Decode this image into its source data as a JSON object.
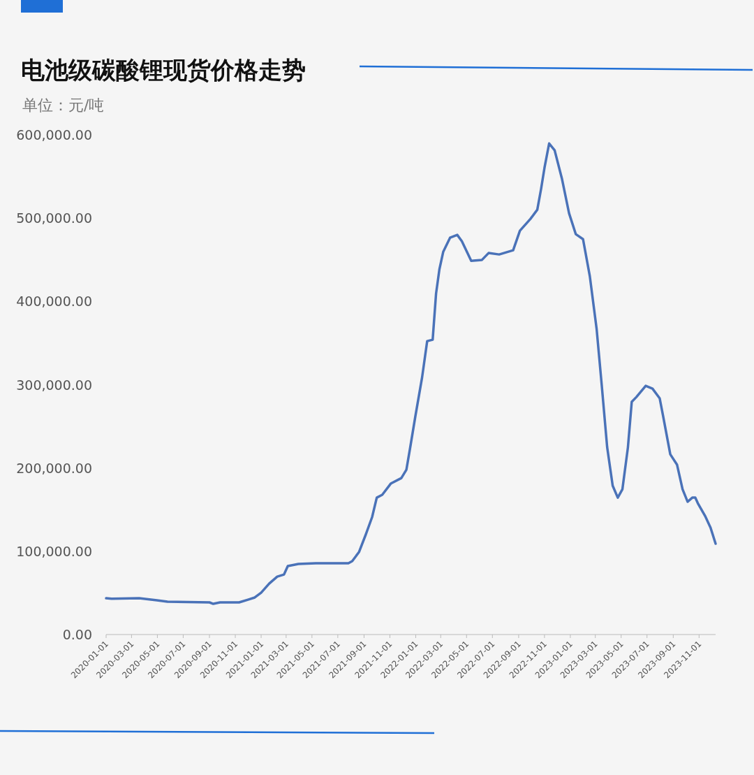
{
  "chart_data": {
    "type": "line",
    "title": "电池级碳酸锂现货价格走势",
    "subtitle": "单位：元/吨",
    "x": [
      "2020-01-01",
      "2020-01-14",
      "2020-03-19",
      "2020-04-30",
      "2020-05-25",
      "2020-09-01",
      "2020-09-10",
      "2020-09-26",
      "2020-11-10",
      "2020-12-01",
      "2020-12-17",
      "2021-01-01",
      "2021-01-20",
      "2021-02-08",
      "2021-02-24",
      "2021-03-05",
      "2021-03-30",
      "2021-05-10",
      "2021-07-26",
      "2021-08-04",
      "2021-08-20",
      "2021-09-05",
      "2021-09-20",
      "2021-10-01",
      "2021-10-14",
      "2021-11-03",
      "2021-11-28",
      "2021-12-10",
      "2021-12-19",
      "2021-12-31",
      "2022-01-16",
      "2022-01-28",
      "2022-02-10",
      "2022-02-18",
      "2022-02-26",
      "2022-03-07",
      "2022-03-23",
      "2022-04-09",
      "2022-04-20",
      "2022-05-12",
      "2022-06-06",
      "2022-06-22",
      "2022-07-17",
      "2022-08-19",
      "2022-09-04",
      "2022-09-29",
      "2022-10-15",
      "2022-10-24",
      "2022-11-01",
      "2022-11-12",
      "2022-11-25",
      "2022-12-12",
      "2022-12-29",
      "2023-01-14",
      "2023-01-31",
      "2023-02-16",
      "2023-03-04",
      "2023-03-16",
      "2023-03-29",
      "2023-04-11",
      "2023-04-23",
      "2023-05-04",
      "2023-05-17",
      "2023-05-26",
      "2023-06-06",
      "2023-06-28",
      "2023-07-14",
      "2023-07-31",
      "2023-08-08",
      "2023-08-25",
      "2023-09-10",
      "2023-09-23",
      "2023-10-05",
      "2023-10-16",
      "2023-10-23",
      "2023-10-29",
      "2023-11-15",
      "2023-11-28",
      "2023-12-10"
    ],
    "series": [
      {
        "color": "#4a72b8",
        "values": [
          43600,
          43000,
          43600,
          41100,
          39400,
          38600,
          36900,
          38600,
          38600,
          41900,
          44500,
          50300,
          61200,
          69600,
          72100,
          82200,
          84700,
          85600,
          85600,
          88100,
          99000,
          120000,
          141000,
          164400,
          167800,
          181200,
          187900,
          198000,
          224800,
          261700,
          308700,
          352300,
          354000,
          409400,
          438800,
          459700,
          476500,
          479900,
          472300,
          448800,
          449700,
          458100,
          456400,
          461400,
          484900,
          499200,
          510100,
          535200,
          560400,
          589700,
          581400,
          547800,
          505900,
          480700,
          474800,
          430400,
          367400,
          300300,
          224800,
          178700,
          164400,
          174500,
          224800,
          279400,
          285200,
          298700,
          295300,
          283600,
          262600,
          216400,
          203900,
          174500,
          159400,
          164400,
          164400,
          157700,
          142600,
          128400,
          109100
        ]
      }
    ],
    "xlim": [
      "2020-01-01",
      "2023-12-10"
    ],
    "xticks": [
      "2020-01-01",
      "2020-03-01",
      "2020-05-01",
      "2020-07-01",
      "2020-09-01",
      "2020-11-01",
      "2021-01-01",
      "2021-03-01",
      "2021-05-01",
      "2021-07-01",
      "2021-09-01",
      "2021-11-01",
      "2022-01-01",
      "2022-03-01",
      "2022-05-01",
      "2022-07-01",
      "2022-09-01",
      "2022-11-01",
      "2023-01-01",
      "2023-03-01",
      "2023-05-01",
      "2023-07-01",
      "2023-09-01",
      "2023-11-01"
    ],
    "ylim": [
      0,
      600000
    ],
    "yticks": [
      {
        "value": 0,
        "label": "0.00"
      },
      {
        "value": 100000,
        "label": "100,000.00"
      },
      {
        "value": 200000,
        "label": "200,000.00"
      },
      {
        "value": 300000,
        "label": "300,000.00"
      },
      {
        "value": 400000,
        "label": "400,000.00"
      },
      {
        "value": 500000,
        "label": "500,000.00"
      },
      {
        "value": 600000,
        "label": "600,000.00"
      }
    ],
    "marker": "none",
    "line_style": "solid"
  }
}
